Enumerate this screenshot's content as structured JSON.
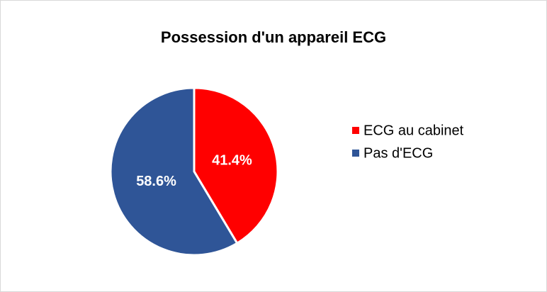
{
  "chart_data": {
    "type": "pie",
    "title": "Possession d'un appareil ECG",
    "categories": [
      "ECG au cabinet",
      "Pas d'ECG"
    ],
    "values": [
      41.4,
      58.6
    ],
    "value_labels": [
      "41.4%",
      "58.6%"
    ],
    "colors": [
      "#ff0000",
      "#2f5597"
    ],
    "legend": "right"
  }
}
